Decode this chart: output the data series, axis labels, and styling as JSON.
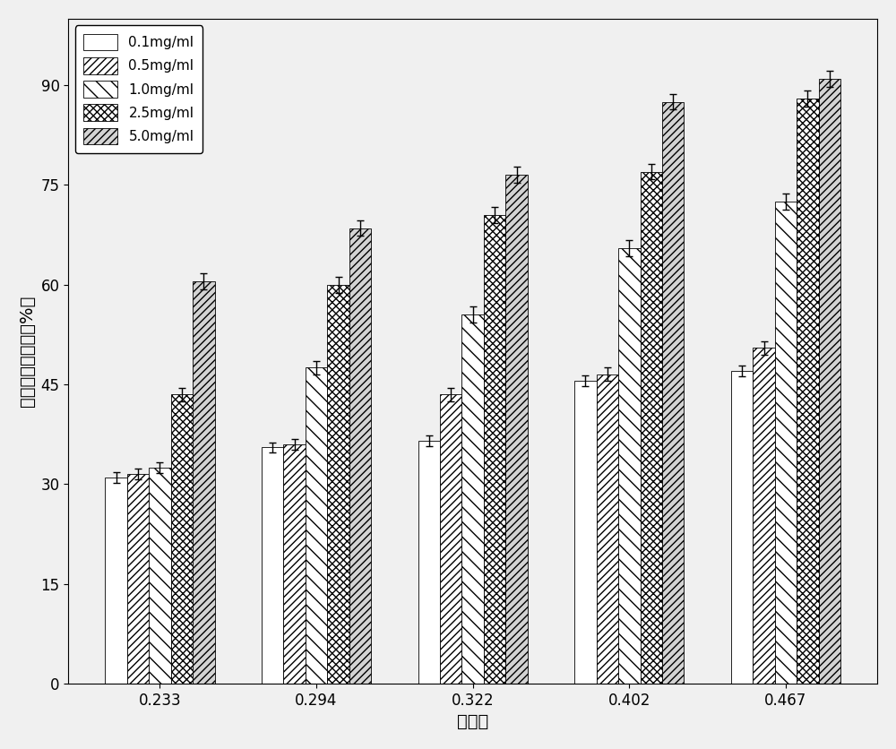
{
  "categories": [
    "0.233",
    "0.294",
    "0.322",
    "0.402",
    "0.467"
  ],
  "series_labels": [
    "0.1mg/ml",
    "0.5mg/ml",
    "1.0mg/ml",
    "2.5mg/ml",
    "5.0mg/ml"
  ],
  "values": [
    [
      31.0,
      35.5,
      36.5,
      45.5,
      47.0
    ],
    [
      31.5,
      36.0,
      43.5,
      46.5,
      50.5
    ],
    [
      32.5,
      47.5,
      55.5,
      65.5,
      72.5
    ],
    [
      43.5,
      60.0,
      70.5,
      77.0,
      88.0
    ],
    [
      60.5,
      68.5,
      76.5,
      87.5,
      91.0
    ]
  ],
  "errors": [
    [
      0.8,
      0.8,
      0.8,
      0.8,
      0.8
    ],
    [
      0.8,
      0.8,
      1.0,
      1.0,
      1.0
    ],
    [
      0.8,
      1.0,
      1.2,
      1.2,
      1.2
    ],
    [
      1.0,
      1.2,
      1.2,
      1.2,
      1.2
    ],
    [
      1.2,
      1.2,
      1.2,
      1.2,
      1.2
    ]
  ],
  "xlabel": "取代度",
  "ylabel": "对自由基清除率（%）",
  "ylim": [
    0,
    100
  ],
  "yticks": [
    0,
    15,
    30,
    45,
    60,
    75,
    90
  ],
  "bar_width": 0.14,
  "background_color": "#f0f0f0",
  "label_fontsize": 14,
  "tick_fontsize": 12,
  "legend_fontsize": 11
}
